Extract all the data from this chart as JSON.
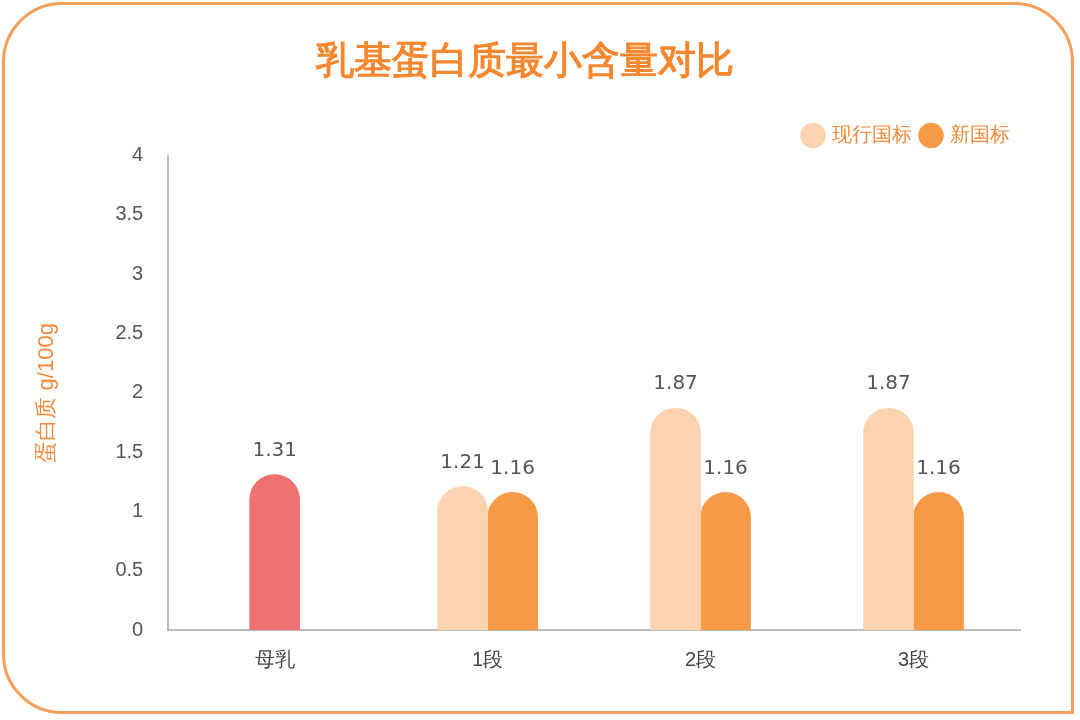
{
  "chart_data": {
    "type": "bar",
    "title": "乳基蛋白质最小含量对比",
    "ylabel": "蛋白质 g/100g",
    "categories": [
      "母乳",
      "1段",
      "2段",
      "3段"
    ],
    "series": [
      {
        "name": "现行国标",
        "color": "#fcd3b1",
        "colors": [
          "#ee7272",
          "#fcd3b1",
          "#fcd3b1",
          "#fcd3b1"
        ],
        "values": [
          1.31,
          1.21,
          1.87,
          1.87
        ]
      },
      {
        "name": "新国标",
        "color": "#f79a45",
        "values": [
          null,
          1.16,
          1.16,
          1.16
        ]
      }
    ],
    "ylim": [
      0,
      4
    ],
    "yticks": [
      0,
      0.5,
      1,
      1.5,
      2,
      2.5,
      3,
      3.5,
      4
    ],
    "grid": false,
    "legend": "top right",
    "data_labels": true
  }
}
